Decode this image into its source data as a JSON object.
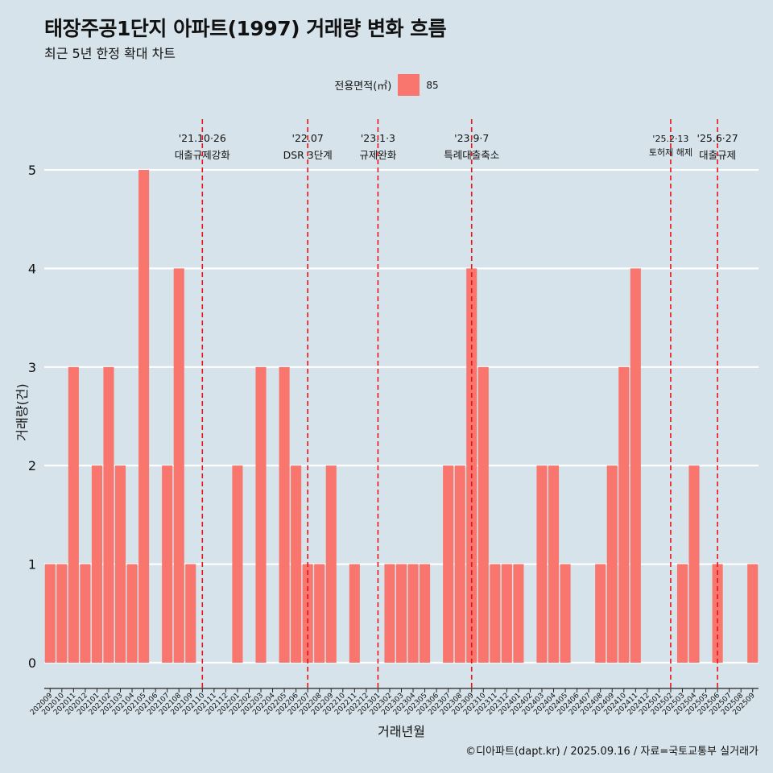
{
  "header": {
    "title": "태장주공1단지 아파트(1997) 거래량 변화 흐름",
    "subtitle": "최근 5년 한정 확대 차트"
  },
  "legend": {
    "title": "전용면적(㎡)",
    "items": [
      {
        "label": "85",
        "color": "#f8766d"
      }
    ]
  },
  "caption": "©디아파트(dapt.kr) / 2025.09.16 / 자료=국토교통부 실거래가",
  "chart_data": {
    "type": "bar",
    "xlabel": "거래년월",
    "ylabel": "거래량(건)",
    "ylim": [
      0,
      5
    ],
    "yticks": [
      0,
      1,
      2,
      3,
      4,
      5
    ],
    "grid": true,
    "legend_position": "top",
    "bar_color": "#f8766d",
    "categories": [
      "202009",
      "202010",
      "202011",
      "202012",
      "202101",
      "202102",
      "202103",
      "202104",
      "202105",
      "202106",
      "202107",
      "202108",
      "202109",
      "202110",
      "202111",
      "202112",
      "202201",
      "202202",
      "202203",
      "202204",
      "202205",
      "202206",
      "202207",
      "202208",
      "202209",
      "202210",
      "202211",
      "202212",
      "202301",
      "202302",
      "202303",
      "202304",
      "202305",
      "202306",
      "202307",
      "202308",
      "202309",
      "202310",
      "202311",
      "202312",
      "202401",
      "202402",
      "202403",
      "202404",
      "202405",
      "202406",
      "202407",
      "202408",
      "202409",
      "202410",
      "202411",
      "202412",
      "202501",
      "202502",
      "202503",
      "202504",
      "202505",
      "202506",
      "202507",
      "202508",
      "202509"
    ],
    "series": [
      {
        "name": "85",
        "values": [
          1,
          1,
          3,
          1,
          2,
          3,
          2,
          1,
          5,
          0,
          2,
          4,
          1,
          0,
          0,
          0,
          2,
          0,
          3,
          0,
          3,
          2,
          1,
          1,
          2,
          0,
          1,
          0,
          0,
          1,
          1,
          1,
          1,
          0,
          2,
          2,
          4,
          3,
          1,
          1,
          1,
          0,
          2,
          2,
          1,
          0,
          0,
          1,
          2,
          3,
          4,
          0,
          0,
          0,
          1,
          2,
          0,
          1,
          0,
          0,
          1
        ]
      }
    ],
    "annotations": [
      {
        "at": "202110",
        "date": "'21.10·26",
        "text": "대출규제강화"
      },
      {
        "at": "202207",
        "date": "'22.07",
        "text": "DSR 3단계"
      },
      {
        "at": "202301",
        "date": "'23.1·3",
        "text": "규제완화"
      },
      {
        "at": "202309",
        "date": "'23.9·7",
        "text": "특례대출축소"
      },
      {
        "at": "202502",
        "date": "'25.2·13",
        "text": "토허제 해제"
      },
      {
        "at": "202506",
        "date": "'25.6·27",
        "text": "대출규제"
      }
    ]
  }
}
